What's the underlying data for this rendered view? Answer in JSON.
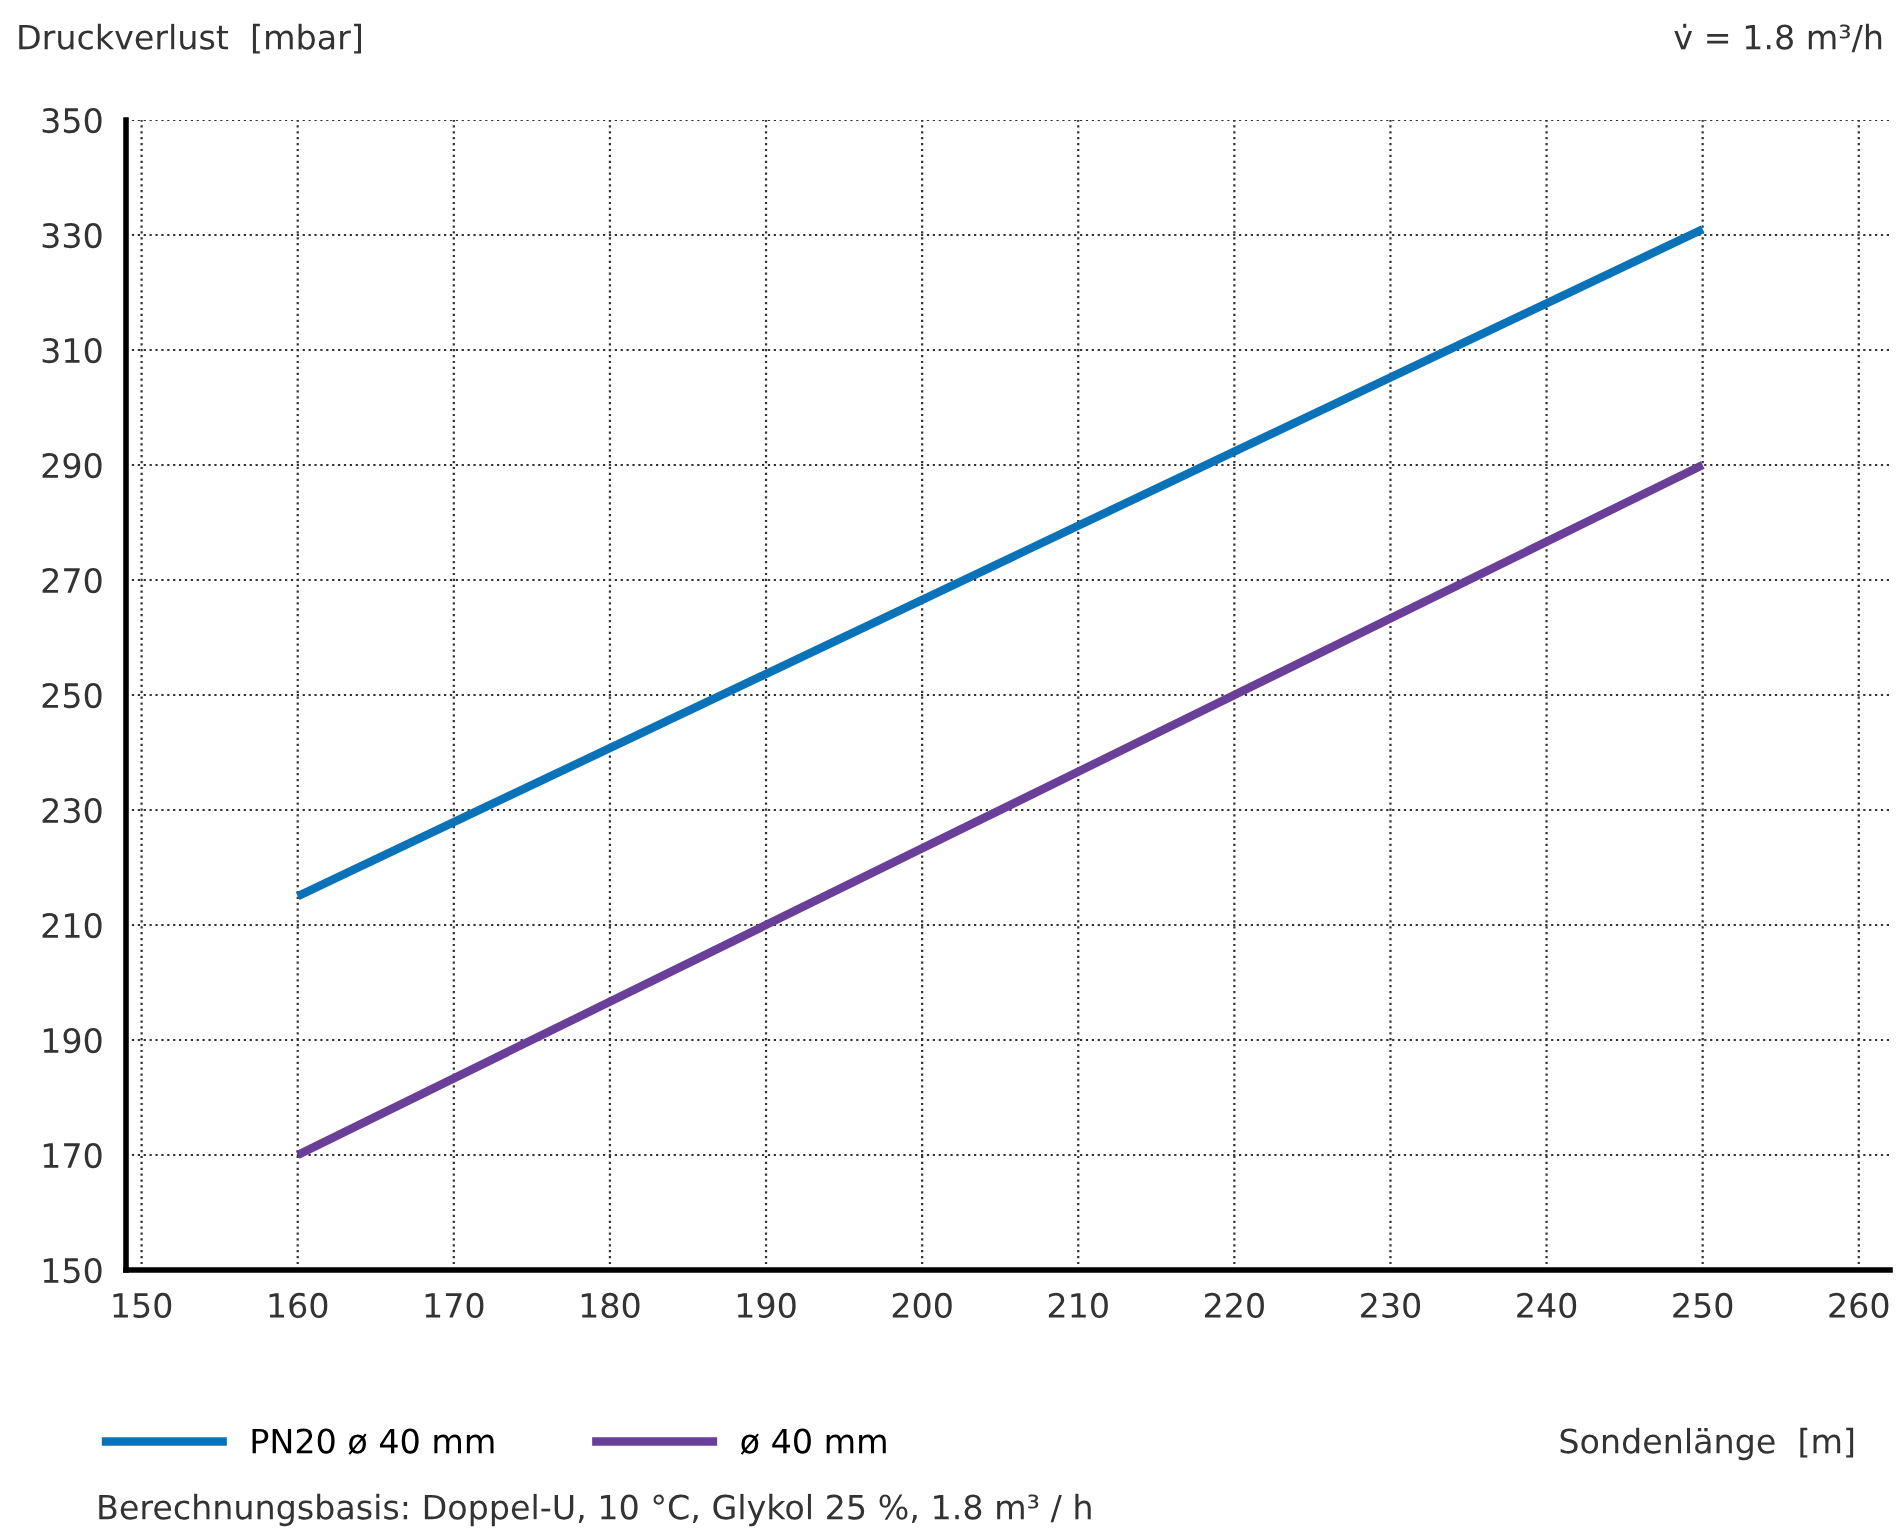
{
  "chart_data": {
    "type": "line",
    "ylabel": "Druckverlust  [mbar]",
    "xlabel": "Sondenlänge  [m]",
    "annotations": [
      "v̇ = 1.8 m³/h",
      "Berechnungsbasis: Doppel-U, 10 °C, Glykol 25 %, 1.8 m³ / h"
    ],
    "x": [
      160,
      250
    ],
    "series": [
      {
        "name": "PN20 ø 40 mm",
        "color": "#0a72b8",
        "values": [
          215,
          331
        ]
      },
      {
        "name": "ø 40 mm",
        "color": "#6a3f9a",
        "values": [
          170,
          290
        ]
      }
    ],
    "xlim": [
      149,
      262
    ],
    "ylim": [
      150,
      350
    ],
    "xticks": [
      150,
      160,
      170,
      180,
      190,
      200,
      210,
      220,
      230,
      240,
      250,
      260
    ],
    "yticks": [
      150,
      170,
      190,
      210,
      230,
      250,
      270,
      290,
      310,
      330,
      350
    ],
    "grid": true,
    "legend": "bottom left",
    "marker": "none",
    "line_style": "solid"
  }
}
